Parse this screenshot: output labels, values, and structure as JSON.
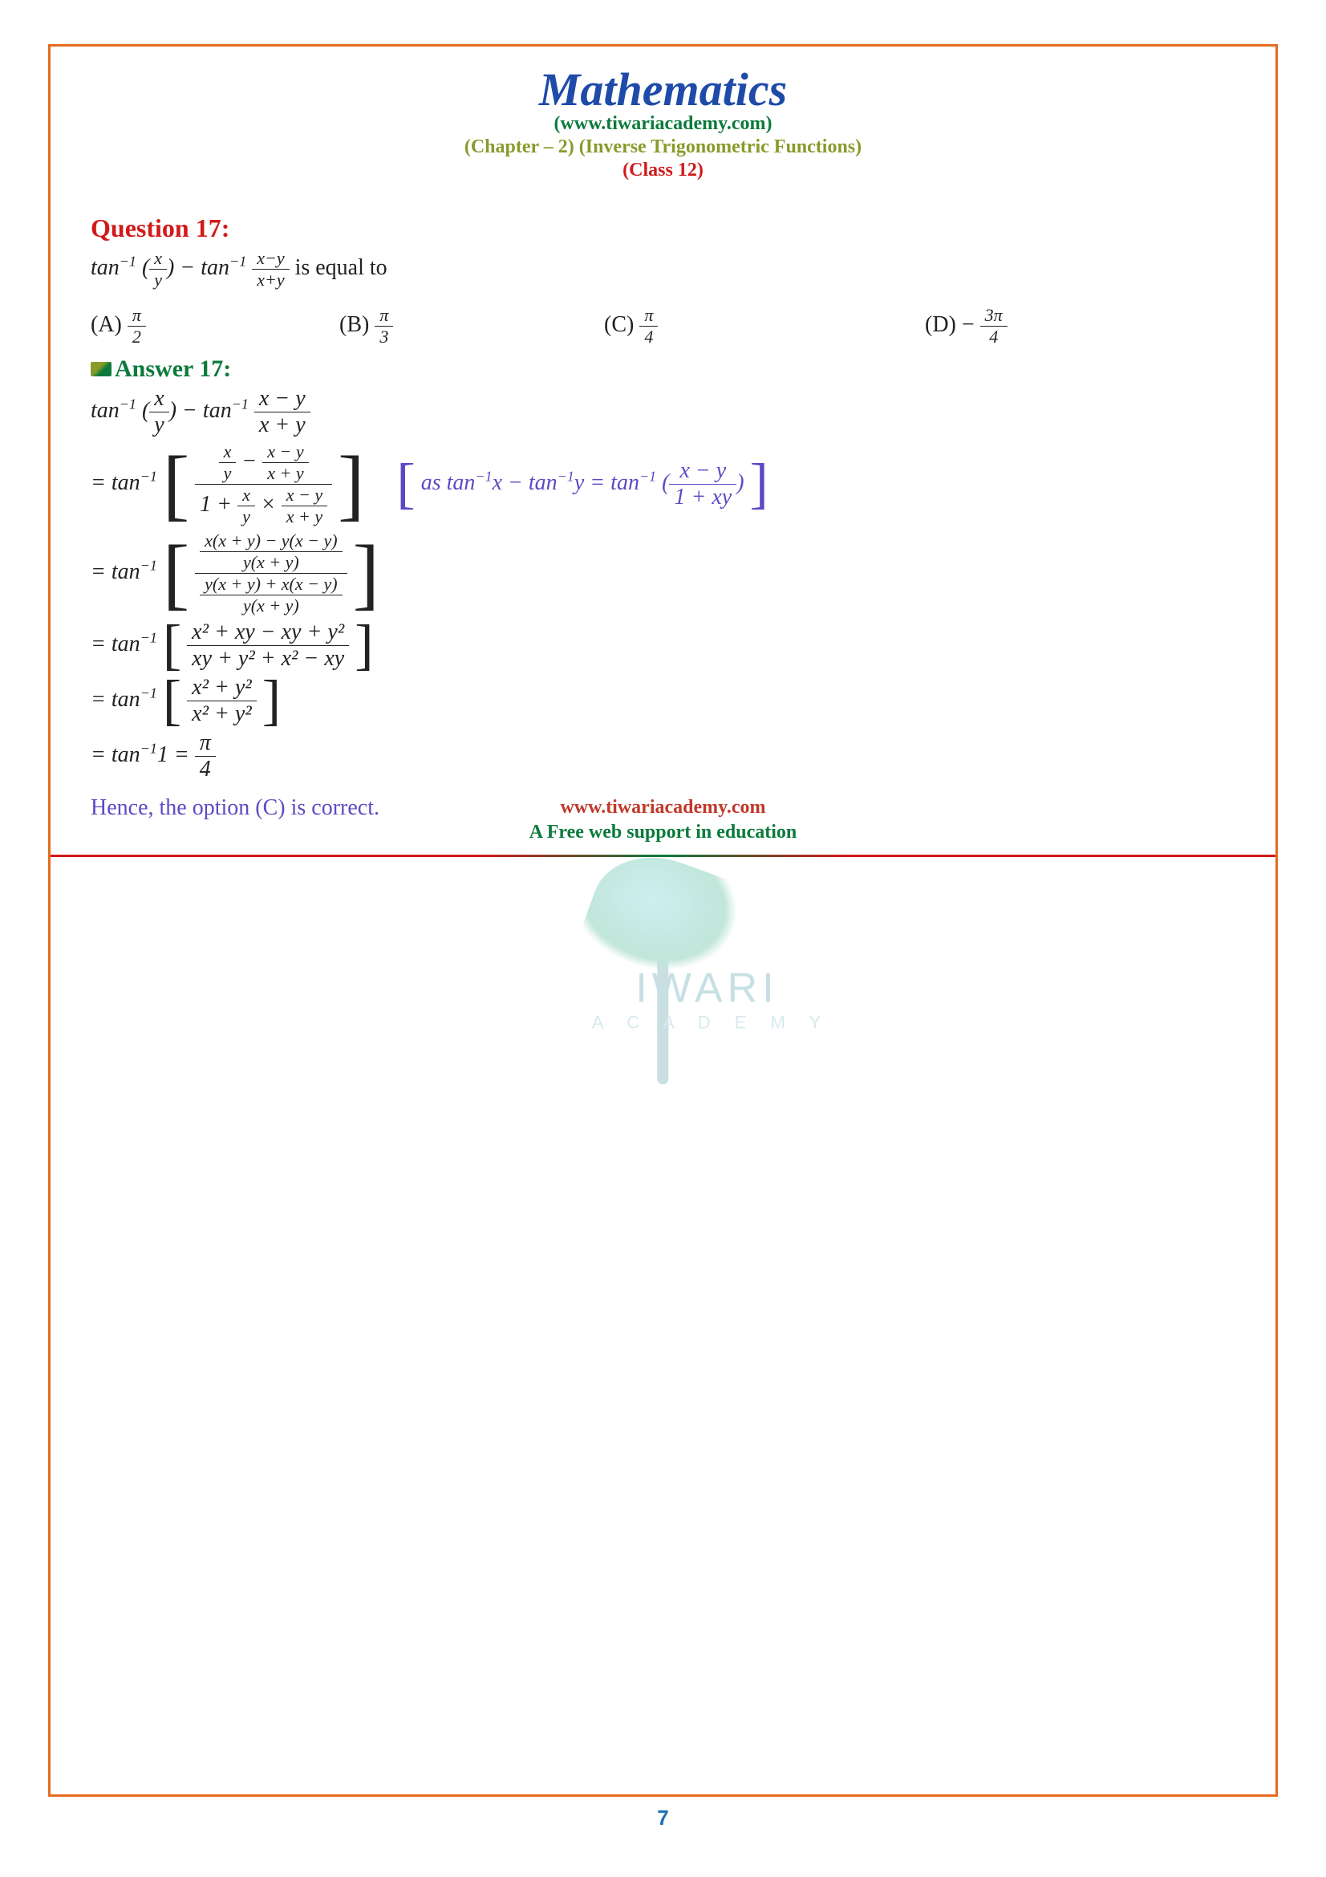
{
  "header": {
    "title": "Mathematics",
    "website": "(www.tiwariacademy.com)",
    "chapter": "(Chapter – 2) (Inverse Trigonometric Functions)",
    "class_label": "(Class 12)"
  },
  "question": {
    "heading": "Question 17:",
    "expr_prefix": "tan",
    "expr_sup": "−1",
    "q_frac1_num": "x",
    "q_frac1_den": "y",
    "q_minus": " − tan",
    "q_frac2_num": "x−y",
    "q_frac2_den": "x+y",
    "q_suffix": "  is equal to",
    "options": {
      "A_label": "(A) ",
      "A_num": "π",
      "A_den": "2",
      "B_label": "(B) ",
      "B_num": "π",
      "B_den": "3",
      "C_label": "(C) ",
      "C_num": "π",
      "C_den": "4",
      "D_label": "(D) − ",
      "D_num": "3π",
      "D_den": "4"
    }
  },
  "answer": {
    "heading": "Answer 17:",
    "line1_a": "tan",
    "line1_f1n": "x",
    "line1_f1d": "y",
    "line1_b": " − tan",
    "line1_f2n": "x − y",
    "line1_f2d": "x + y",
    "line2_eq": "= tan",
    "line2_num_a": "x",
    "line2_num_b": "y",
    "line2_num_c": "x − y",
    "line2_num_d": "x + y",
    "line2_den_a": "x",
    "line2_den_b": "y",
    "line2_den_c": "x − y",
    "line2_den_d": "x + y",
    "formula_note_a": "as tan",
    "formula_note_b": "x − tan",
    "formula_note_c": "y = tan",
    "formula_note_fn": "x − y",
    "formula_note_fd": "1 + xy",
    "line3_num_top": "x(x + y) − y(x − y)",
    "line3_num_bot": "y(x + y)",
    "line3_den_top": "y(x + y) + x(x − y)",
    "line3_den_bot": "y(x + y)",
    "line4_num": "x² + xy − xy + y²",
    "line4_den": "xy + y² + x² − xy",
    "line5_num": "x² + y²",
    "line5_den": "x² + y²",
    "line6_a": "= tan",
    "line6_b": "1 = ",
    "line6_fn": "π",
    "line6_fd": "4",
    "conclusion": "Hence, the option (C) is correct."
  },
  "watermark": {
    "text1": "IWARI",
    "text2": "A C A D E M Y"
  },
  "footer": {
    "url": "www.tiwariacademy.com",
    "tagline": "A Free web support in education",
    "page_number": "7"
  },
  "colors": {
    "border": "#e56b1f",
    "title": "#1f4ba8",
    "green": "#0b7a3b",
    "olive": "#8a9a2a",
    "red": "#d11a1a",
    "purple": "#5a4bc4",
    "pagenum": "#1f6fb5"
  }
}
